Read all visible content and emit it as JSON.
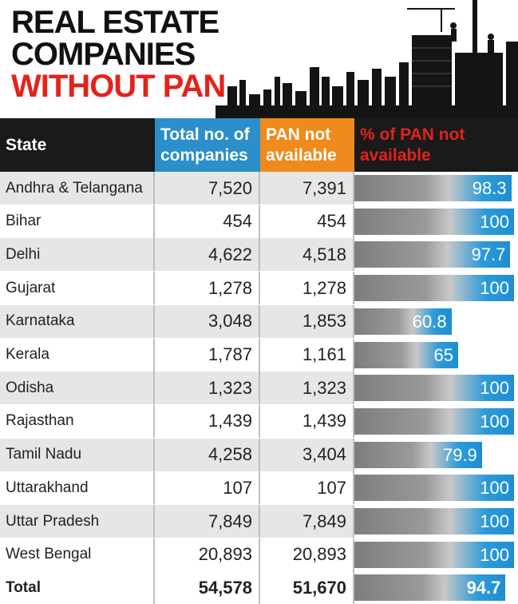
{
  "header": {
    "title_line1": "REAL ESTATE",
    "title_line2": "COMPANIES",
    "title_line3": "WITHOUT PAN"
  },
  "table": {
    "columns": [
      "State",
      "Total no. of companies",
      "PAN not available",
      "% of PAN not available"
    ]
  },
  "colors": {
    "accent_red": "#e3231b",
    "total_header_blue": "#2b8fc9",
    "pan_header_orange": "#f08a1c",
    "bar_blue": "#1d8ed3"
  },
  "chart_data": {
    "type": "table",
    "title": "REAL ESTATE COMPANIES WITHOUT PAN",
    "columns": [
      "State",
      "Total no. of companies",
      "PAN not available",
      "% of PAN not available"
    ],
    "rows": [
      {
        "state": "Andhra & Telangana",
        "total": "7,520",
        "pan_na": "7,391",
        "pct": 98.3,
        "pct_label": "98.3"
      },
      {
        "state": "Bihar",
        "total": "454",
        "pan_na": "454",
        "pct": 100,
        "pct_label": "100"
      },
      {
        "state": "Delhi",
        "total": "4,622",
        "pan_na": "4,518",
        "pct": 97.7,
        "pct_label": "97.7"
      },
      {
        "state": "Gujarat",
        "total": "1,278",
        "pan_na": "1,278",
        "pct": 100,
        "pct_label": "100"
      },
      {
        "state": "Karnataka",
        "total": "3,048",
        "pan_na": "1,853",
        "pct": 60.8,
        "pct_label": "60.8"
      },
      {
        "state": "Kerala",
        "total": "1,787",
        "pan_na": "1,161",
        "pct": 65,
        "pct_label": "65"
      },
      {
        "state": "Odisha",
        "total": "1,323",
        "pan_na": "1,323",
        "pct": 100,
        "pct_label": "100"
      },
      {
        "state": "Rajasthan",
        "total": "1,439",
        "pan_na": "1,439",
        "pct": 100,
        "pct_label": "100"
      },
      {
        "state": "Tamil Nadu",
        "total": "4,258",
        "pan_na": "3,404",
        "pct": 79.9,
        "pct_label": "79.9"
      },
      {
        "state": "Uttarakhand",
        "total": "107",
        "pan_na": "107",
        "pct": 100,
        "pct_label": "100"
      },
      {
        "state": "Uttar Pradesh",
        "total": "7,849",
        "pan_na": "7,849",
        "pct": 100,
        "pct_label": "100"
      },
      {
        "state": "West Bengal",
        "total": "20,893",
        "pan_na": "20,893",
        "pct": 100,
        "pct_label": "100"
      },
      {
        "state": "Total",
        "total": "54,578",
        "pan_na": "51,670",
        "pct": 94.7,
        "pct_label": "94.7"
      }
    ]
  }
}
